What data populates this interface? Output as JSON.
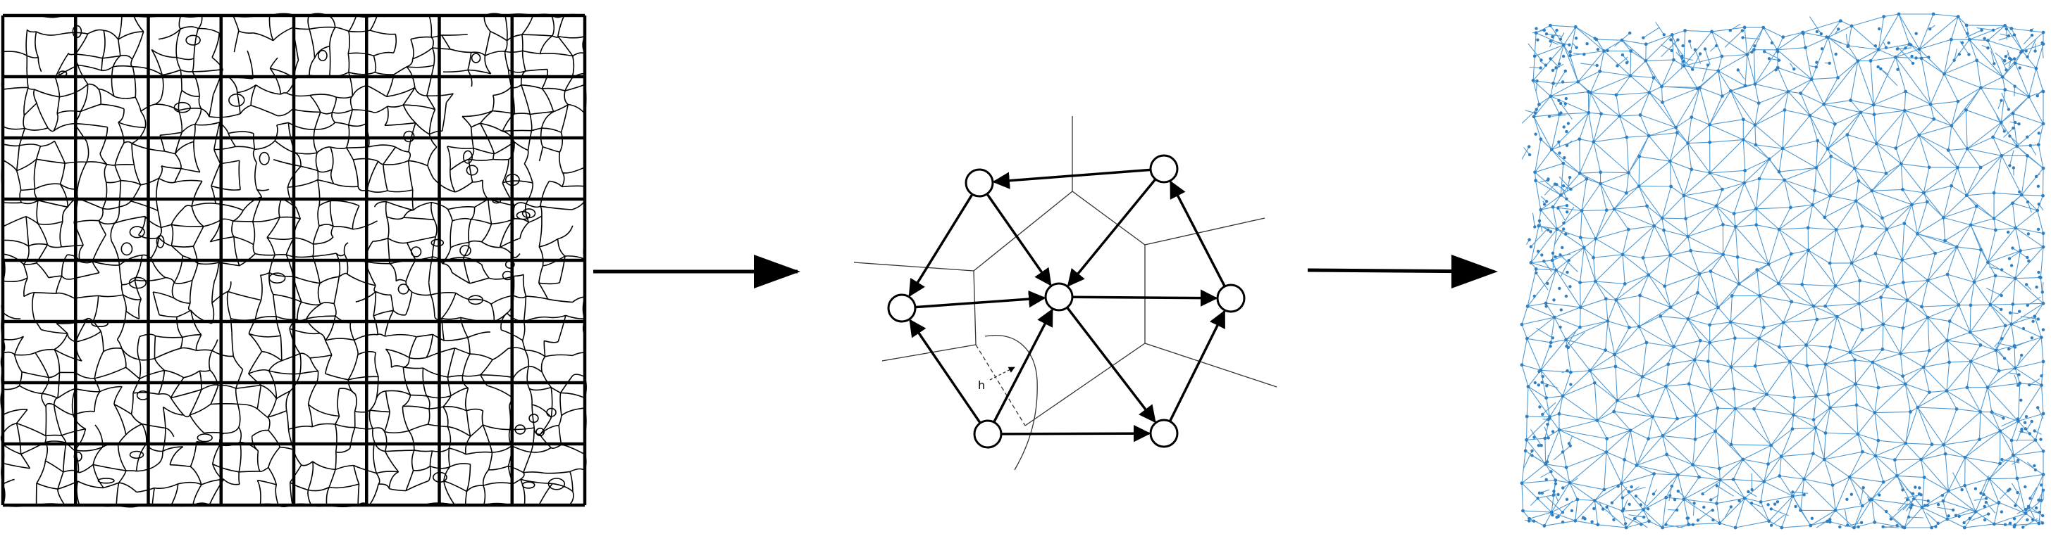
{
  "figure": {
    "panels": [
      "crack-map-grid",
      "graph-construction",
      "mesh-network"
    ],
    "colors": {
      "ink": "#000000",
      "mesh": "#3d8fcf",
      "background": "#ffffff"
    }
  },
  "crack_grid": {
    "rows": 8,
    "cols": 8
  },
  "graph": {
    "node_count": 7,
    "edge_label": "h"
  },
  "mesh": {
    "description_color": "blue"
  }
}
